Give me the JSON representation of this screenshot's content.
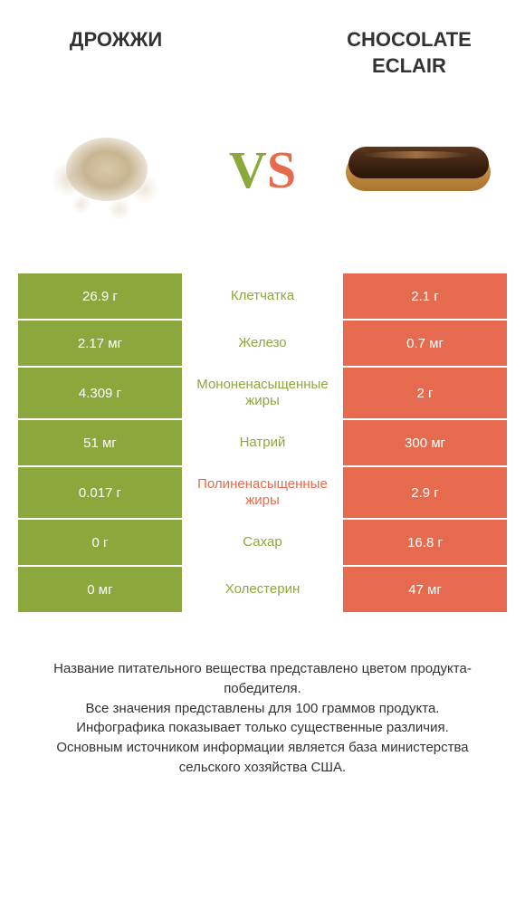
{
  "header": {
    "left_title": "ДРОЖЖИ",
    "right_title": "CHOCOLATE ECLAIR"
  },
  "vs": {
    "v": "V",
    "s": "S"
  },
  "colors": {
    "green": "#8ba83d",
    "orange": "#e66a4e",
    "text": "#333333",
    "background": "#ffffff"
  },
  "rows": [
    {
      "left": "26.9 г",
      "mid": "Клетчатка",
      "right": "2.1 г",
      "winner": "green"
    },
    {
      "left": "2.17 мг",
      "mid": "Железо",
      "right": "0.7 мг",
      "winner": "green"
    },
    {
      "left": "4.309 г",
      "mid": "Мононенасыщенные жиры",
      "right": "2 г",
      "winner": "green"
    },
    {
      "left": "51 мг",
      "mid": "Натрий",
      "right": "300 мг",
      "winner": "green"
    },
    {
      "left": "0.017 г",
      "mid": "Полиненасыщенные жиры",
      "right": "2.9 г",
      "winner": "orange"
    },
    {
      "left": "0 г",
      "mid": "Сахар",
      "right": "16.8 г",
      "winner": "green"
    },
    {
      "left": "0 мг",
      "mid": "Холестерин",
      "right": "47 мг",
      "winner": "green"
    }
  ],
  "footer": {
    "line1": "Название питательного вещества представлено цветом продукта-победителя.",
    "line2": "Все значения представлены для 100 граммов продукта.",
    "line3": "Инфографика показывает только существенные различия.",
    "line4": "Основным источником информации является база министерства сельского хозяйства США."
  }
}
